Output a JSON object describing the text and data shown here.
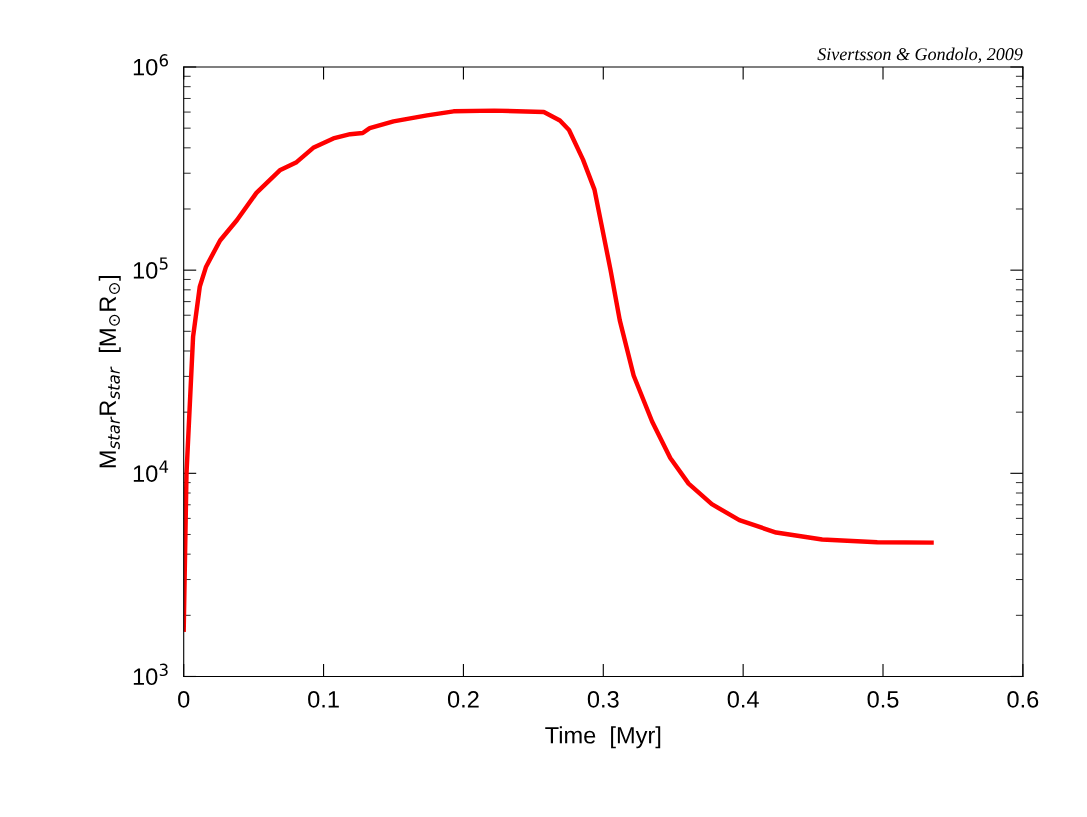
{
  "chart_data": {
    "type": "line",
    "xlabel": "Time  [Myr]",
    "ylabel": "M$_{star}$R$_{star}$  [M$_{⊙}$R$_{⊙}$]",
    "annotations": [
      "Sivertsson & Gondolo, 2009"
    ],
    "log": "y",
    "grid": false,
    "legend": false,
    "line_style": "solid",
    "marker": "none",
    "xlim": [
      0,
      0.6
    ],
    "xticks": [
      0,
      0.1,
      0.2,
      0.3,
      0.4,
      0.5,
      0.6
    ],
    "ylim": [
      1000,
      1000000
    ],
    "yticks": [
      {
        "value": 1000,
        "label": "10$^{3}$"
      },
      {
        "value": 10000,
        "label": "10$^{4}$"
      },
      {
        "value": 100000,
        "label": "10$^{5}$"
      },
      {
        "value": 1000000,
        "label": "10$^{6}$"
      }
    ],
    "series": [
      {
        "color": "#ff0000",
        "x": [
          0.0,
          0.002,
          0.0067,
          0.0115,
          0.016,
          0.026,
          0.038,
          0.052,
          0.0687,
          0.0807,
          0.0926,
          0.107,
          0.119,
          0.128,
          0.133,
          0.15,
          0.174,
          0.193,
          0.222,
          0.2575,
          0.269,
          0.2755,
          0.2855,
          0.2937,
          0.2986,
          0.3052,
          0.3118,
          0.3217,
          0.3349,
          0.3479,
          0.361,
          0.3776,
          0.3973,
          0.4236,
          0.4565,
          0.4959,
          0.5347
        ],
        "values": [
          1700,
          10000,
          47000,
          83000,
          104000,
          140000,
          176000,
          240000,
          310000,
          340000,
          400000,
          445000,
          467000,
          473000,
          500000,
          540000,
          578000,
          605000,
          610000,
          600000,
          545000,
          490000,
          350000,
          249000,
          169000,
          100000,
          56600,
          30300,
          18000,
          11900,
          8900,
          7050,
          5880,
          5110,
          4720,
          4580,
          4560
        ]
      }
    ]
  }
}
